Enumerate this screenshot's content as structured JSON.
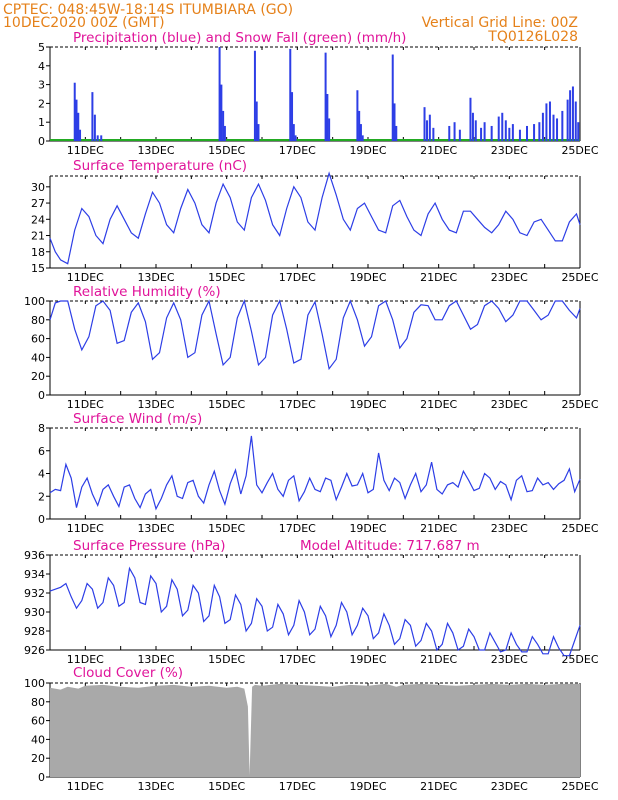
{
  "header": {
    "line1_left": "CPTEC:   048:45W-18:14S   ITUMBIARA (GO)",
    "line2_left": "10DEC2020 00Z (GMT)",
    "line2_right": "Vertical Grid Line: 00Z",
    "line3_right": "TQ0126L028"
  },
  "colors": {
    "header": "#e5811a",
    "title": "#e0149a",
    "line": "#2d3ee6",
    "snow": "#22aa22",
    "cloud": "#a9a9a9"
  },
  "x_tick_labels": [
    "11DEC",
    "13DEC",
    "15DEC",
    "17DEC",
    "19DEC",
    "21DEC",
    "23DEC",
    "25DEC"
  ],
  "chart_data": [
    {
      "type": "bar",
      "title": "Precipitation (blue) and Snow Fall (green) (mm/h)",
      "ylim": [
        0,
        5
      ],
      "yticks": [
        "0",
        "1",
        "2",
        "3",
        "4",
        "5"
      ],
      "x_range_days": [
        10,
        25
      ],
      "series": [
        {
          "values": [
            [
              10.7,
              3.1
            ],
            [
              10.75,
              2.2
            ],
            [
              10.8,
              1.5
            ],
            [
              10.85,
              0.6
            ],
            [
              11.2,
              2.6
            ],
            [
              11.27,
              1.4
            ],
            [
              11.35,
              0.3
            ],
            [
              11.45,
              0.3
            ],
            [
              14.8,
              5.0
            ],
            [
              14.85,
              3.0
            ],
            [
              14.9,
              1.6
            ],
            [
              14.95,
              0.8
            ],
            [
              15.8,
              4.8
            ],
            [
              15.85,
              2.1
            ],
            [
              15.9,
              0.9
            ],
            [
              16.8,
              4.9
            ],
            [
              16.85,
              2.6
            ],
            [
              16.9,
              0.9
            ],
            [
              16.95,
              0.3
            ],
            [
              17.8,
              4.7
            ],
            [
              17.85,
              2.5
            ],
            [
              17.9,
              1.2
            ],
            [
              18.7,
              2.7
            ],
            [
              18.75,
              1.6
            ],
            [
              18.8,
              0.9
            ],
            [
              18.85,
              0.3
            ],
            [
              19.7,
              4.6
            ],
            [
              19.75,
              2.0
            ],
            [
              19.8,
              0.8
            ],
            [
              20.6,
              1.8
            ],
            [
              20.67,
              1.1
            ],
            [
              20.75,
              1.4
            ],
            [
              20.85,
              0.7
            ],
            [
              21.3,
              0.8
            ],
            [
              21.45,
              1.0
            ],
            [
              21.6,
              0.6
            ],
            [
              21.9,
              2.3
            ],
            [
              21.97,
              1.5
            ],
            [
              22.05,
              1.1
            ],
            [
              22.2,
              0.7
            ],
            [
              22.3,
              1.0
            ],
            [
              22.5,
              0.8
            ],
            [
              22.7,
              1.3
            ],
            [
              22.8,
              1.5
            ],
            [
              22.9,
              1.1
            ],
            [
              23.0,
              0.7
            ],
            [
              23.1,
              0.9
            ],
            [
              23.3,
              0.6
            ],
            [
              23.5,
              0.8
            ],
            [
              23.7,
              0.9
            ],
            [
              23.85,
              1.0
            ],
            [
              23.95,
              1.5
            ],
            [
              24.05,
              2.0
            ],
            [
              24.15,
              2.1
            ],
            [
              24.25,
              1.4
            ],
            [
              24.35,
              1.2
            ],
            [
              24.5,
              1.6
            ],
            [
              24.65,
              2.2
            ],
            [
              24.72,
              2.7
            ],
            [
              24.8,
              2.9
            ],
            [
              24.88,
              2.1
            ],
            [
              24.95,
              1.0
            ]
          ]
        }
      ]
    },
    {
      "type": "line",
      "title": "Surface Temperature (nC)",
      "ylim": [
        15,
        32
      ],
      "yticks": [
        "15",
        "18",
        "21",
        "24",
        "27",
        "30"
      ],
      "x": [
        10.0,
        10.15,
        10.3,
        10.5,
        10.7,
        10.9,
        11.1,
        11.3,
        11.5,
        11.7,
        11.9,
        12.1,
        12.3,
        12.5,
        12.7,
        12.9,
        13.1,
        13.3,
        13.5,
        13.7,
        13.9,
        14.1,
        14.3,
        14.5,
        14.7,
        14.9,
        15.1,
        15.3,
        15.5,
        15.7,
        15.9,
        16.1,
        16.3,
        16.5,
        16.7,
        16.9,
        17.1,
        17.3,
        17.5,
        17.7,
        17.9,
        18.1,
        18.3,
        18.5,
        18.7,
        18.9,
        19.1,
        19.3,
        19.5,
        19.7,
        19.9,
        20.1,
        20.3,
        20.5,
        20.7,
        20.9,
        21.1,
        21.3,
        21.5,
        21.7,
        21.9,
        22.1,
        22.3,
        22.5,
        22.7,
        22.9,
        23.1,
        23.3,
        23.5,
        23.7,
        23.9,
        24.1,
        24.3,
        24.5,
        24.7,
        24.9,
        25.0
      ],
      "series": [
        {
          "values": [
            20.5,
            18.0,
            16.5,
            15.8,
            22.0,
            26.0,
            24.5,
            21.0,
            19.5,
            24.0,
            26.5,
            24.0,
            21.5,
            20.5,
            25.0,
            29.0,
            27.0,
            23.0,
            21.5,
            26.0,
            29.5,
            27.0,
            23.0,
            21.5,
            27.0,
            30.5,
            28.0,
            23.5,
            22.0,
            28.0,
            30.5,
            27.5,
            23.0,
            21.0,
            26.0,
            30.0,
            28.0,
            23.5,
            22.0,
            28.0,
            32.5,
            28.5,
            24.0,
            22.0,
            26.0,
            27.0,
            24.5,
            22.0,
            21.5,
            26.5,
            27.5,
            24.5,
            22.0,
            21.0,
            25.0,
            27.0,
            24.0,
            22.0,
            21.5,
            25.5,
            25.5,
            24.0,
            22.5,
            21.5,
            23.0,
            25.5,
            24.0,
            21.5,
            21.0,
            23.5,
            24.0,
            22.0,
            20.0,
            20.0,
            23.5,
            25.0,
            23.0
          ]
        }
      ]
    },
    {
      "type": "line",
      "title": "Relative Humidity (%)",
      "ylim": [
        0,
        100
      ],
      "yticks": [
        "0",
        "20",
        "40",
        "60",
        "80",
        "100"
      ],
      "x": [
        10.0,
        10.15,
        10.3,
        10.5,
        10.7,
        10.9,
        11.1,
        11.3,
        11.5,
        11.7,
        11.9,
        12.1,
        12.3,
        12.5,
        12.7,
        12.9,
        13.1,
        13.3,
        13.5,
        13.7,
        13.9,
        14.1,
        14.3,
        14.5,
        14.7,
        14.9,
        15.1,
        15.3,
        15.5,
        15.7,
        15.9,
        16.1,
        16.3,
        16.5,
        16.7,
        16.9,
        17.1,
        17.3,
        17.5,
        17.7,
        17.9,
        18.1,
        18.3,
        18.5,
        18.7,
        18.9,
        19.1,
        19.3,
        19.5,
        19.7,
        19.9,
        20.1,
        20.3,
        20.5,
        20.7,
        20.9,
        21.1,
        21.3,
        21.5,
        21.7,
        21.9,
        22.1,
        22.3,
        22.5,
        22.7,
        22.9,
        23.1,
        23.3,
        23.5,
        23.7,
        23.9,
        24.1,
        24.3,
        24.5,
        24.7,
        24.9,
        25.0
      ],
      "series": [
        {
          "values": [
            80,
            98,
            100,
            100,
            70,
            48,
            62,
            95,
            100,
            90,
            55,
            58,
            88,
            98,
            78,
            38,
            45,
            82,
            98,
            80,
            40,
            45,
            85,
            100,
            65,
            32,
            40,
            82,
            100,
            68,
            32,
            40,
            85,
            100,
            70,
            34,
            38,
            85,
            99,
            65,
            28,
            38,
            82,
            100,
            80,
            52,
            62,
            95,
            100,
            80,
            50,
            60,
            88,
            96,
            95,
            80,
            80,
            95,
            100,
            85,
            70,
            75,
            95,
            100,
            92,
            78,
            85,
            100,
            100,
            90,
            80,
            85,
            100,
            100,
            90,
            82,
            92
          ]
        }
      ]
    },
    {
      "type": "line",
      "title": "Surface Wind (m/s)",
      "ylim": [
        0,
        8
      ],
      "yticks": [
        "0",
        "2",
        "4",
        "6",
        "8"
      ],
      "x": [
        10.0,
        10.15,
        10.3,
        10.45,
        10.6,
        10.75,
        10.9,
        11.05,
        11.2,
        11.35,
        11.5,
        11.65,
        11.8,
        11.95,
        12.1,
        12.25,
        12.4,
        12.55,
        12.7,
        12.85,
        13.0,
        13.15,
        13.3,
        13.45,
        13.6,
        13.75,
        13.9,
        14.05,
        14.2,
        14.35,
        14.5,
        14.65,
        14.8,
        14.95,
        15.1,
        15.25,
        15.4,
        15.55,
        15.7,
        15.85,
        16.0,
        16.15,
        16.3,
        16.45,
        16.6,
        16.75,
        16.9,
        17.05,
        17.2,
        17.35,
        17.5,
        17.65,
        17.8,
        17.95,
        18.1,
        18.25,
        18.4,
        18.55,
        18.7,
        18.85,
        19.0,
        19.15,
        19.3,
        19.45,
        19.6,
        19.75,
        19.9,
        20.05,
        20.2,
        20.35,
        20.5,
        20.65,
        20.8,
        20.95,
        21.1,
        21.25,
        21.4,
        21.55,
        21.7,
        21.85,
        22.0,
        22.15,
        22.3,
        22.45,
        22.6,
        22.75,
        22.9,
        23.05,
        23.2,
        23.35,
        23.5,
        23.65,
        23.8,
        23.95,
        24.1,
        24.25,
        24.4,
        24.55,
        24.7,
        24.85,
        25.0
      ],
      "series": [
        {
          "values": [
            2.3,
            2.6,
            2.5,
            4.8,
            3.6,
            1.0,
            2.8,
            3.6,
            2.2,
            1.2,
            2.6,
            3.0,
            2.0,
            1.1,
            2.8,
            3.0,
            1.8,
            1.0,
            2.2,
            2.6,
            0.9,
            1.8,
            3.0,
            3.8,
            2.0,
            1.8,
            3.2,
            3.4,
            2.0,
            1.4,
            3.0,
            4.2,
            2.5,
            1.3,
            3.1,
            4.3,
            2.2,
            3.8,
            7.3,
            3.0,
            2.3,
            3.2,
            4.0,
            2.6,
            2.0,
            3.4,
            3.8,
            1.6,
            2.4,
            3.6,
            2.6,
            2.4,
            3.6,
            3.4,
            1.7,
            2.8,
            4.0,
            2.9,
            3.0,
            4.0,
            2.3,
            2.6,
            5.8,
            3.4,
            2.5,
            3.6,
            3.2,
            1.8,
            3.0,
            4.0,
            2.4,
            3.0,
            5.0,
            2.6,
            2.2,
            3.0,
            3.2,
            2.8,
            4.2,
            3.4,
            2.5,
            2.7,
            4.0,
            3.6,
            2.6,
            3.3,
            3.0,
            1.7,
            3.4,
            3.8,
            2.4,
            2.5,
            3.6,
            3.0,
            3.2,
            2.6,
            3.1,
            3.4,
            4.4,
            2.4,
            3.5
          ]
        }
      ]
    },
    {
      "type": "line",
      "title": "Surface Pressure (hPa)",
      "annotation": "Model Altitude: 717.687 m",
      "ylim": [
        926,
        936
      ],
      "yticks": [
        "926",
        "928",
        "930",
        "932",
        "934",
        "936"
      ],
      "x": [
        10.0,
        10.15,
        10.3,
        10.45,
        10.6,
        10.75,
        10.9,
        11.05,
        11.2,
        11.35,
        11.5,
        11.65,
        11.8,
        11.95,
        12.1,
        12.25,
        12.4,
        12.55,
        12.7,
        12.85,
        13.0,
        13.15,
        13.3,
        13.45,
        13.6,
        13.75,
        13.9,
        14.05,
        14.2,
        14.35,
        14.5,
        14.65,
        14.8,
        14.95,
        15.1,
        15.25,
        15.4,
        15.55,
        15.7,
        15.85,
        16.0,
        16.15,
        16.3,
        16.45,
        16.6,
        16.75,
        16.9,
        17.05,
        17.2,
        17.35,
        17.5,
        17.65,
        17.8,
        17.95,
        18.1,
        18.25,
        18.4,
        18.55,
        18.7,
        18.85,
        19.0,
        19.15,
        19.3,
        19.45,
        19.6,
        19.75,
        19.9,
        20.05,
        20.2,
        20.35,
        20.5,
        20.65,
        20.8,
        20.95,
        21.1,
        21.25,
        21.4,
        21.55,
        21.7,
        21.85,
        22.0,
        22.15,
        22.3,
        22.45,
        22.6,
        22.75,
        22.9,
        23.05,
        23.2,
        23.35,
        23.5,
        23.65,
        23.8,
        23.95,
        24.1,
        24.25,
        24.4,
        24.55,
        24.7,
        24.85,
        25.0
      ],
      "series": [
        {
          "values": [
            932.2,
            932.4,
            932.6,
            933.0,
            931.6,
            930.4,
            931.2,
            933.0,
            932.4,
            930.4,
            931.0,
            933.6,
            932.8,
            930.6,
            931.0,
            934.6,
            933.6,
            931.0,
            930.8,
            933.8,
            933.0,
            930.0,
            930.6,
            933.4,
            932.4,
            929.6,
            930.2,
            932.8,
            932.0,
            929.0,
            929.6,
            932.8,
            931.6,
            928.8,
            929.2,
            931.8,
            930.8,
            928.0,
            928.8,
            931.4,
            930.6,
            928.0,
            928.4,
            930.8,
            929.8,
            927.6,
            928.6,
            931.2,
            930.0,
            927.6,
            928.2,
            930.6,
            929.6,
            927.4,
            928.6,
            931.0,
            930.0,
            927.6,
            928.6,
            930.4,
            929.6,
            927.2,
            927.8,
            929.8,
            928.6,
            926.6,
            927.2,
            929.2,
            928.6,
            926.4,
            927.0,
            928.8,
            928.0,
            926.0,
            926.6,
            928.8,
            927.8,
            926.0,
            926.4,
            928.2,
            927.4,
            926.0,
            926.0,
            927.8,
            926.8,
            925.8,
            926.0,
            927.8,
            926.6,
            925.8,
            925.8,
            927.4,
            926.6,
            925.6,
            925.6,
            927.4,
            926.2,
            925.4,
            925.4,
            927.0,
            928.6
          ]
        }
      ]
    },
    {
      "type": "area",
      "title": "Cloud Cover (%)",
      "ylim": [
        0,
        100
      ],
      "yticks": [
        "0",
        "20",
        "40",
        "60",
        "80",
        "100"
      ],
      "x": [
        10.0,
        10.3,
        10.5,
        10.8,
        11.0,
        11.5,
        12.0,
        12.5,
        13.0,
        13.5,
        14.0,
        14.5,
        15.0,
        15.3,
        15.5,
        15.6,
        15.65,
        15.72,
        15.8,
        16.0,
        16.5,
        17.0,
        17.5,
        18.0,
        18.5,
        19.0,
        19.5,
        19.8,
        20.0,
        20.5,
        21.0,
        21.5,
        22.0,
        22.5,
        23.0,
        23.5,
        24.0,
        24.5,
        25.0
      ],
      "series": [
        {
          "values": [
            95,
            93,
            96,
            94,
            97,
            98,
            96,
            95,
            97,
            98,
            96,
            97,
            95,
            96,
            94,
            75,
            2,
            96,
            98,
            97,
            99,
            98,
            97,
            96,
            98,
            97,
            99,
            96,
            98,
            99,
            98,
            97,
            98,
            99,
            98,
            99,
            98,
            99,
            99
          ]
        }
      ]
    }
  ]
}
